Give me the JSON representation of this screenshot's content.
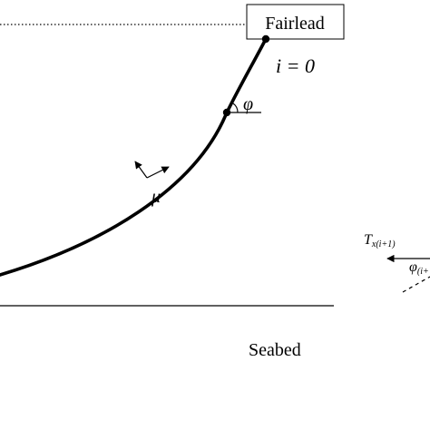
{
  "diagram": {
    "fairlead_label": "Fairlead",
    "index_label": "i = 0",
    "angle_label": "φ",
    "mu_label": "μ",
    "seabed_label": "Seabed",
    "tension_label_main": "T",
    "tension_label_sub": "x(i+1)",
    "angle_next_label_main": "φ",
    "angle_next_label_sub": "(i+"
  }
}
